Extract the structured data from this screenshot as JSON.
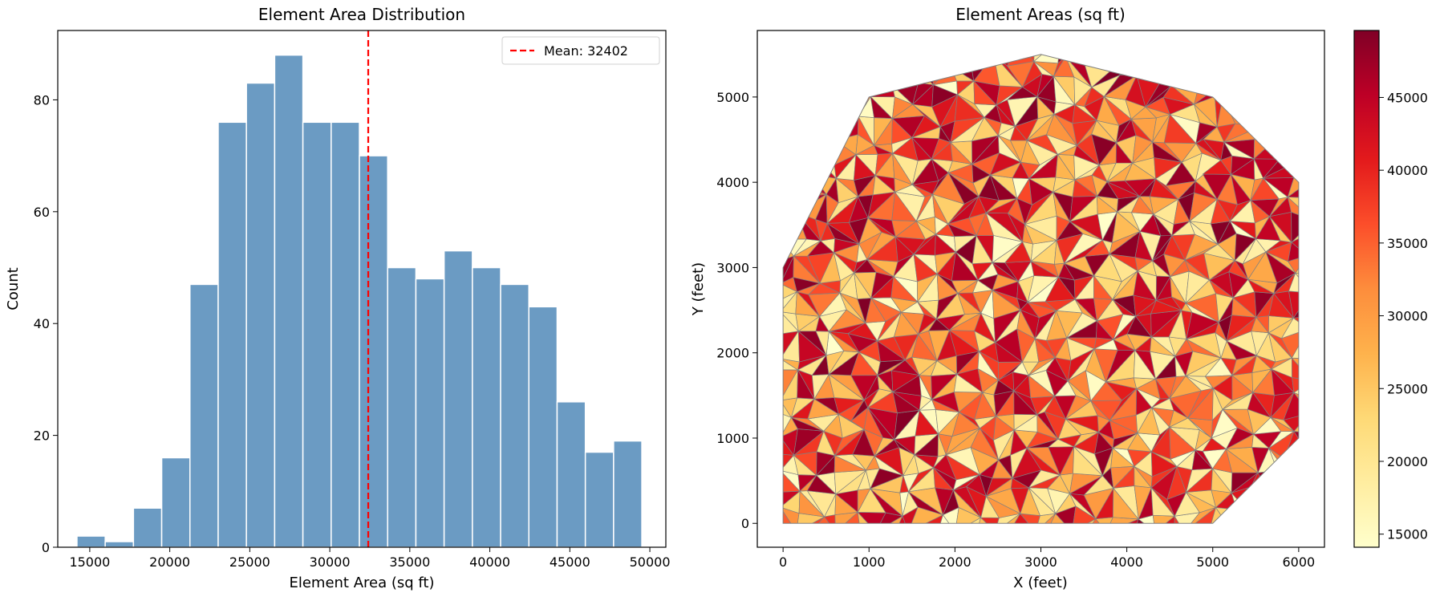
{
  "chart_data": [
    {
      "type": "bar",
      "title": "Element Area Distribution",
      "xlabel": "Element Area (sq ft)",
      "ylabel": "Count",
      "bin_range": [
        14200,
        49500
      ],
      "values": [
        2,
        1,
        7,
        16,
        47,
        76,
        83,
        88,
        76,
        76,
        70,
        50,
        48,
        53,
        50,
        47,
        43,
        26,
        17,
        19
      ],
      "xlim": [
        13000,
        51000
      ],
      "ylim": [
        0,
        92.4
      ],
      "xticks": [
        15000,
        20000,
        25000,
        30000,
        35000,
        40000,
        45000,
        50000
      ],
      "yticks": [
        0,
        20,
        40,
        60,
        80
      ],
      "bar_color": "#6b9bc3",
      "mean_line": {
        "value": 32402,
        "label": "Mean: 32402",
        "color": "#ff0000",
        "style": "dashed"
      },
      "legend_position": "top-right",
      "grid": false
    },
    {
      "type": "heatmap",
      "subtype": "triangular mesh",
      "title": "Element Areas (sq ft)",
      "xlabel": "X (feet)",
      "ylabel": "Y (feet)",
      "xlim": [
        -300,
        6300
      ],
      "ylim": [
        -280,
        5780
      ],
      "xticks": [
        0,
        1000,
        2000,
        3000,
        4000,
        5000,
        6000
      ],
      "yticks": [
        0,
        1000,
        2000,
        3000,
        4000,
        5000
      ],
      "boundary": [
        [
          0,
          0
        ],
        [
          0,
          3000
        ],
        [
          1000,
          5000
        ],
        [
          3000,
          5500
        ],
        [
          5000,
          5000
        ],
        [
          6000,
          4000
        ],
        [
          6000,
          1000
        ],
        [
          5000,
          0
        ]
      ],
      "colormap": "YlOrRd",
      "color_range": [
        14100,
        49600
      ],
      "colorbar_ticks": [
        15000,
        20000,
        25000,
        30000,
        35000,
        40000,
        45000
      ],
      "edge_color": "#808080"
    }
  ]
}
